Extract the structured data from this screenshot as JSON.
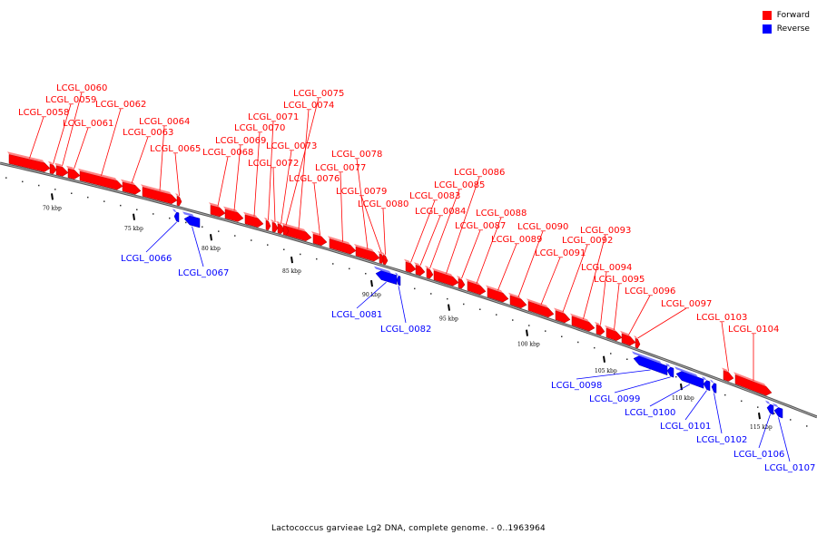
{
  "legend": {
    "forward_label": "Forward",
    "reverse_label": "Reverse",
    "forward_color": "#ff0000",
    "reverse_color": "#0000ff"
  },
  "caption": "Lactococcus garvieae Lg2 DNA, complete genome. - 0..1963964",
  "axis": {
    "ticks": [
      "70 kbp",
      "75 kbp",
      "80 kbp",
      "85 kbp",
      "90 kbp",
      "95 kbp",
      "100 kbp",
      "105 kbp",
      "110 kbp",
      "115 kbp"
    ]
  },
  "genes": [
    {
      "name": "LCGL_0058",
      "strand": "forward"
    },
    {
      "name": "LCGL_0059",
      "strand": "forward"
    },
    {
      "name": "LCGL_0060",
      "strand": "forward"
    },
    {
      "name": "LCGL_0061",
      "strand": "forward"
    },
    {
      "name": "LCGL_0062",
      "strand": "forward"
    },
    {
      "name": "LCGL_0063",
      "strand": "forward"
    },
    {
      "name": "LCGL_0064",
      "strand": "forward"
    },
    {
      "name": "LCGL_0065",
      "strand": "forward"
    },
    {
      "name": "LCGL_0066",
      "strand": "reverse"
    },
    {
      "name": "LCGL_0067",
      "strand": "reverse"
    },
    {
      "name": "LCGL_0068",
      "strand": "forward"
    },
    {
      "name": "LCGL_0069",
      "strand": "forward"
    },
    {
      "name": "LCGL_0070",
      "strand": "forward"
    },
    {
      "name": "LCGL_0071",
      "strand": "forward"
    },
    {
      "name": "LCGL_0072",
      "strand": "forward"
    },
    {
      "name": "LCGL_0073",
      "strand": "forward"
    },
    {
      "name": "LCGL_0074",
      "strand": "forward"
    },
    {
      "name": "LCGL_0075",
      "strand": "forward"
    },
    {
      "name": "LCGL_0076",
      "strand": "forward"
    },
    {
      "name": "LCGL_0077",
      "strand": "forward"
    },
    {
      "name": "LCGL_0078",
      "strand": "forward"
    },
    {
      "name": "LCGL_0079",
      "strand": "forward"
    },
    {
      "name": "LCGL_0080",
      "strand": "forward"
    },
    {
      "name": "LCGL_0081",
      "strand": "reverse"
    },
    {
      "name": "LCGL_0082",
      "strand": "reverse"
    },
    {
      "name": "LCGL_0083",
      "strand": "forward"
    },
    {
      "name": "LCGL_0084",
      "strand": "forward"
    },
    {
      "name": "LCGL_0085",
      "strand": "forward"
    },
    {
      "name": "LCGL_0086",
      "strand": "forward"
    },
    {
      "name": "LCGL_0087",
      "strand": "forward"
    },
    {
      "name": "LCGL_0088",
      "strand": "forward"
    },
    {
      "name": "LCGL_0089",
      "strand": "forward"
    },
    {
      "name": "LCGL_0090",
      "strand": "forward"
    },
    {
      "name": "LCGL_0091",
      "strand": "forward"
    },
    {
      "name": "LCGL_0092",
      "strand": "forward"
    },
    {
      "name": "LCGL_0093",
      "strand": "forward"
    },
    {
      "name": "LCGL_0094",
      "strand": "forward"
    },
    {
      "name": "LCGL_0095",
      "strand": "forward"
    },
    {
      "name": "LCGL_0096",
      "strand": "forward"
    },
    {
      "name": "LCGL_0097",
      "strand": "forward"
    },
    {
      "name": "LCGL_0098",
      "strand": "reverse"
    },
    {
      "name": "LCGL_0099",
      "strand": "reverse"
    },
    {
      "name": "LCGL_0100",
      "strand": "reverse"
    },
    {
      "name": "LCGL_0101",
      "strand": "reverse"
    },
    {
      "name": "LCGL_0102",
      "strand": "reverse"
    },
    {
      "name": "LCGL_0103",
      "strand": "forward"
    },
    {
      "name": "LCGL_0104",
      "strand": "forward"
    },
    {
      "name": "LCGL_0106",
      "strand": "reverse"
    },
    {
      "name": "LCGL_0107",
      "strand": "reverse"
    }
  ]
}
